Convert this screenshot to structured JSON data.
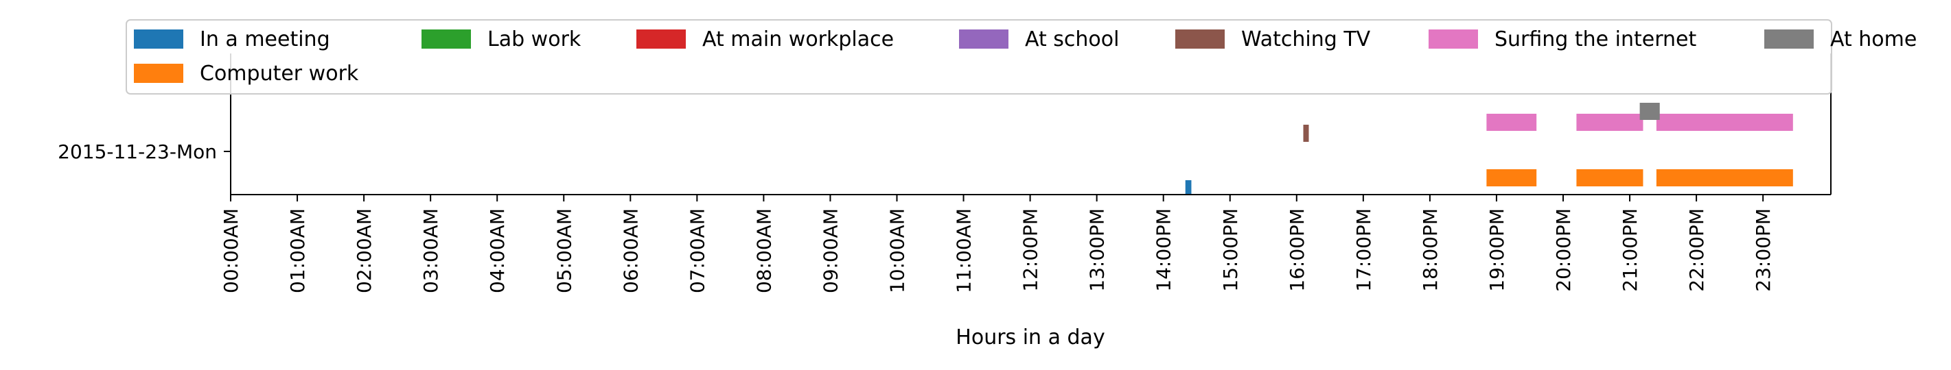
{
  "chart_data": {
    "type": "timeline",
    "xlabel": "Hours in a day",
    "xlim_hours": [
      0,
      24
    ],
    "x_ticks": [
      "00:00AM",
      "01:00AM",
      "02:00AM",
      "03:00AM",
      "04:00AM",
      "05:00AM",
      "06:00AM",
      "07:00AM",
      "08:00AM",
      "09:00AM",
      "10:00AM",
      "11:00AM",
      "12:00PM",
      "13:00PM",
      "14:00PM",
      "15:00PM",
      "16:00PM",
      "17:00PM",
      "18:00PM",
      "19:00PM",
      "20:00PM",
      "21:00PM",
      "22:00PM",
      "23:00PM"
    ],
    "y_ticks": [
      "2015-11-23-Mon"
    ],
    "legend_position": "top, above plot",
    "grid": false,
    "legend": [
      {
        "name": "In a meeting",
        "color": "#1f77b4"
      },
      {
        "name": "Lab work",
        "color": "#2ca02c"
      },
      {
        "name": "At main workplace",
        "color": "#d62728"
      },
      {
        "name": "At school",
        "color": "#9467bd"
      },
      {
        "name": "Watching TV",
        "color": "#8c564b"
      },
      {
        "name": "Surfing the internet",
        "color": "#e377c2"
      },
      {
        "name": "At home",
        "color": "#7f7f7f"
      },
      {
        "name": "Computer work",
        "color": "#ff7f0e"
      }
    ],
    "series": [
      {
        "name": "In a meeting",
        "color": "#1f77b4",
        "intervals": [
          [
            14.33,
            14.42
          ]
        ]
      },
      {
        "name": "Computer work",
        "color": "#ff7f0e",
        "intervals": [
          [
            18.85,
            19.6
          ],
          [
            20.2,
            21.2
          ],
          [
            21.4,
            23.45
          ]
        ]
      },
      {
        "name": "Watching TV",
        "color": "#8c564b",
        "intervals": [
          [
            16.1,
            16.18
          ]
        ]
      },
      {
        "name": "Surfing the internet",
        "color": "#e377c2",
        "intervals": [
          [
            18.85,
            19.6
          ],
          [
            20.2,
            21.2
          ],
          [
            21.4,
            23.45
          ]
        ]
      },
      {
        "name": "At home",
        "color": "#7f7f7f",
        "intervals": [
          [
            21.15,
            21.45
          ]
        ]
      }
    ]
  }
}
